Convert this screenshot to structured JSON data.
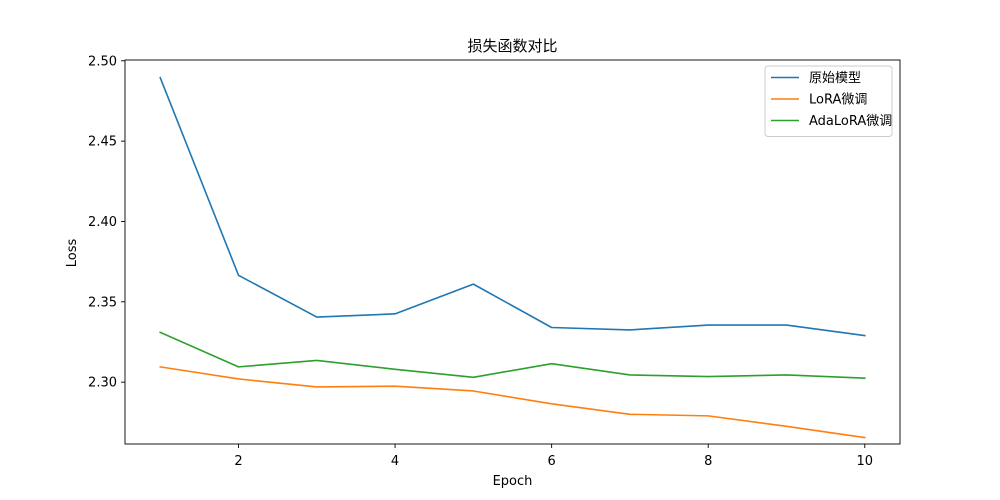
{
  "chart_data": {
    "type": "line",
    "title": "损失函数对比",
    "xlabel": "Epoch",
    "ylabel": "Loss",
    "x": [
      1,
      2,
      3,
      4,
      5,
      6,
      7,
      8,
      9,
      10
    ],
    "xlim": [
      0.55,
      10.45
    ],
    "ylim": [
      2.2615,
      2.5005
    ],
    "xticks": [
      2,
      4,
      6,
      8,
      10
    ],
    "yticks": [
      2.3,
      2.35,
      2.4,
      2.45,
      2.5
    ],
    "ytick_labels": [
      "2.30",
      "2.35",
      "2.40",
      "2.45",
      "2.50"
    ],
    "grid": false,
    "legend_position": "top-right",
    "series": [
      {
        "name": "原始模型",
        "color": "#1f77b4",
        "values": [
          2.4895,
          2.3665,
          2.3405,
          2.3425,
          2.361,
          2.334,
          2.3325,
          2.3355,
          2.3355,
          2.329
        ]
      },
      {
        "name": "LoRA微调",
        "color": "#ff7f0e",
        "values": [
          2.3095,
          2.302,
          2.297,
          2.2975,
          2.2945,
          2.2865,
          2.28,
          2.279,
          2.2725,
          2.2655
        ]
      },
      {
        "name": "AdaLoRA微调",
        "color": "#2ca02c",
        "values": [
          2.331,
          2.3095,
          2.3135,
          2.308,
          2.303,
          2.3115,
          2.3045,
          2.3035,
          2.3045,
          2.3025
        ]
      }
    ]
  }
}
